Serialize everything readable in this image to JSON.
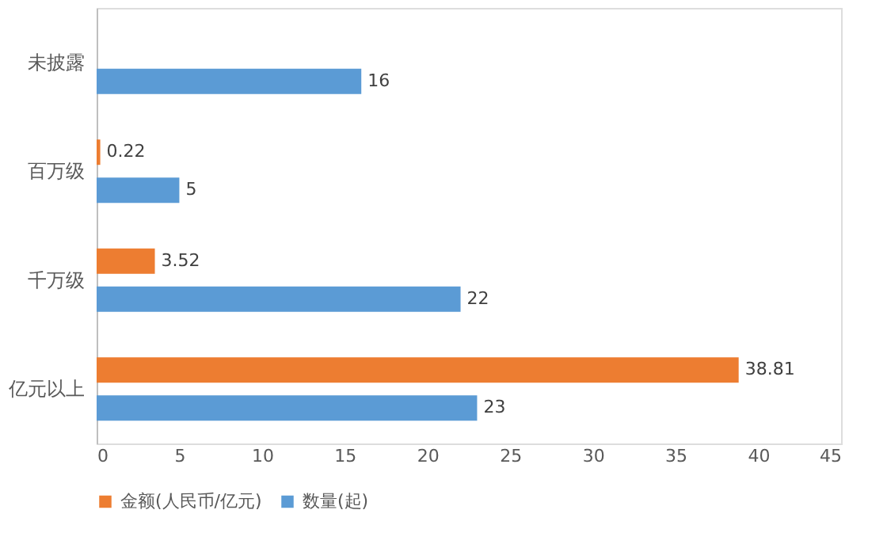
{
  "chart_data": {
    "type": "bar",
    "orientation": "horizontal",
    "categories": [
      "未披露",
      "百万级",
      "千万级",
      "亿元以上"
    ],
    "series": [
      {
        "name": "金额(人民币/亿元)",
        "color": "#ed7d31",
        "values": [
          null,
          0.22,
          3.52,
          38.81
        ]
      },
      {
        "name": "数量(起)",
        "color": "#5b9bd5",
        "values": [
          16,
          5,
          22,
          23
        ]
      }
    ],
    "xlim": [
      0,
      45
    ],
    "xticks": [
      0,
      5,
      10,
      15,
      20,
      25,
      30,
      35,
      40,
      45
    ],
    "data_labels": true,
    "legend": "bottom"
  }
}
